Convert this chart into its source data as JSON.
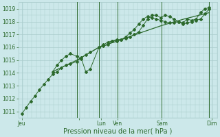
{
  "bg_color": "#cce8ea",
  "grid_color": "#aacccc",
  "line_color": "#2d6a2d",
  "xlabel": "Pression niveau de la mer( hPa )",
  "ylim": [
    1010.5,
    1019.5
  ],
  "yticks": [
    1011,
    1012,
    1013,
    1014,
    1015,
    1016,
    1017,
    1018,
    1019
  ],
  "xlim": [
    0,
    18
  ],
  "x_day_positions": [
    0.3,
    5.5,
    7.5,
    9.0,
    13.0,
    17.5
  ],
  "x_day_labels": [
    "Jeu",
    "",
    "Lun",
    "Ven",
    "Sam",
    "Dim"
  ],
  "vline_positions": [
    5.3,
    7.3,
    9.0,
    13.0,
    17.3
  ],
  "series1_x": [
    0.3,
    0.7,
    1.1,
    1.5,
    1.9,
    2.3,
    2.7,
    3.1,
    3.5,
    3.9,
    4.3,
    4.7,
    5.3,
    5.7,
    6.1,
    6.5,
    7.3,
    7.7,
    8.1,
    8.5,
    8.9,
    9.3,
    9.7,
    10.1,
    10.5,
    10.9,
    11.3,
    11.7,
    12.1,
    12.5,
    12.9,
    13.3,
    13.7,
    14.1,
    14.5,
    14.9,
    15.3,
    15.7,
    16.1,
    16.5,
    16.9,
    17.3
  ],
  "series1_y": [
    1010.8,
    1011.3,
    1011.8,
    1012.2,
    1012.7,
    1013.1,
    1013.5,
    1013.9,
    1014.1,
    1014.4,
    1014.6,
    1014.7,
    1014.9,
    1015.2,
    1015.4,
    1015.6,
    1016.0,
    1016.2,
    1016.4,
    1016.5,
    1016.5,
    1016.6,
    1016.8,
    1017.1,
    1017.4,
    1017.8,
    1018.2,
    1018.4,
    1018.3,
    1018.2,
    1018.1,
    1018.0,
    1017.9,
    1017.9,
    1018.0,
    1017.8,
    1017.9,
    1018.0,
    1018.1,
    1018.2,
    1018.6,
    1019.0
  ],
  "series2_x": [
    3.1,
    3.5,
    3.9,
    4.3,
    4.7,
    5.3,
    5.7,
    6.1,
    6.5,
    7.3,
    7.7,
    8.1,
    8.5,
    8.9,
    9.3,
    9.7,
    10.1,
    10.5,
    10.9,
    11.3,
    11.7,
    12.1,
    12.5,
    12.9,
    13.3,
    13.7,
    14.1,
    14.5,
    14.9,
    15.3,
    15.7,
    16.1,
    16.5,
    16.9,
    17.3
  ],
  "series2_y": [
    1014.1,
    1014.6,
    1015.0,
    1015.3,
    1015.5,
    1015.3,
    1015.1,
    1014.1,
    1014.3,
    1016.0,
    1016.1,
    1016.2,
    1016.5,
    1016.6,
    1016.6,
    1016.7,
    1016.8,
    1017.0,
    1017.2,
    1017.7,
    1018.2,
    1018.5,
    1018.5,
    1018.3,
    1018.5,
    1018.4,
    1018.2,
    1018.0,
    1017.9,
    1018.2,
    1018.1,
    1018.2,
    1018.7,
    1019.0,
    1019.1
  ],
  "series3_x": [
    3.1,
    5.3,
    7.3,
    9.0,
    11.3,
    13.0,
    15.0,
    17.3
  ],
  "series3_y": [
    1014.1,
    1015.0,
    1016.0,
    1016.5,
    1017.2,
    1017.7,
    1018.2,
    1018.7
  ]
}
